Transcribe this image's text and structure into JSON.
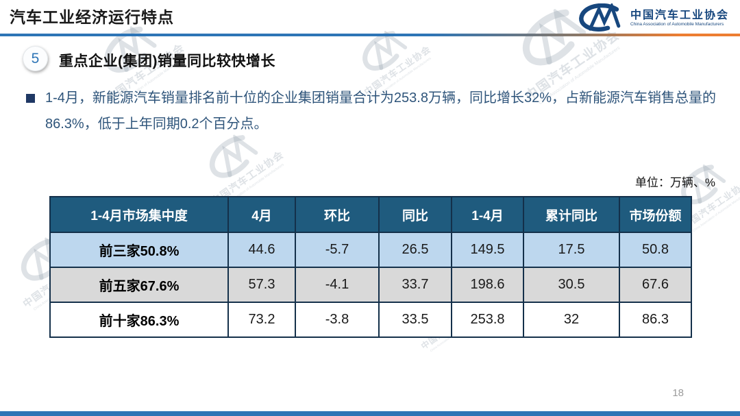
{
  "header": {
    "title": "汽车工业经济运行特点",
    "logo": {
      "glyph": "CM",
      "org_cn": "中国汽车工业协会",
      "org_en": "China Association of Automobile Manufacturers"
    }
  },
  "section": {
    "number": "5",
    "heading": "重点企业(集团)销量同比较快增长"
  },
  "bullet": {
    "text": "1-4月，新能源汽车销量排名前十位的企业集团销量合计为253.8万辆，同比增长32%，占新能源汽车销售总量的86.3%，低于上年同期0.2个百分点。"
  },
  "table": {
    "unit_label": "单位：万辆、%",
    "columns": [
      "1-4月市场集中度",
      "4月",
      "环比",
      "同比",
      "1-4月",
      "累计同比",
      "市场份额"
    ],
    "rows": [
      {
        "label": "前三家50.8%",
        "values": [
          "44.6",
          "-5.7",
          "26.5",
          "149.5",
          "17.5",
          "50.8"
        ]
      },
      {
        "label": "前五家67.6%",
        "values": [
          "57.3",
          "-4.1",
          "33.7",
          "198.6",
          "30.5",
          "67.6"
        ]
      },
      {
        "label": "前十家86.3%",
        "values": [
          "73.2",
          "-3.8",
          "33.5",
          "253.8",
          "32",
          "86.3"
        ]
      }
    ]
  },
  "footer": {
    "page_number": "18"
  },
  "colors": {
    "divider_blue": "#2E75B6",
    "divider_orange": "#ED7D31",
    "table_header_bg": "#1F5B7E",
    "row_light_blue": "#BDD7EE",
    "row_light_gray": "#D9D9D9",
    "table_border": "#14304A",
    "body_text_navy": "#2E547A",
    "logo_navy": "#17477E",
    "bottom_bar_blue": "#2E74B5",
    "section_number_blue": "#2E75B6"
  },
  "chart_data": {
    "type": "table",
    "title": "1-4月市场集中度",
    "unit": "万辆、%",
    "columns": [
      "1-4月市场集中度",
      "4月",
      "环比",
      "同比",
      "1-4月",
      "累计同比",
      "市场份额"
    ],
    "rows": [
      [
        "前三家50.8%",
        44.6,
        -5.7,
        26.5,
        149.5,
        17.5,
        50.8
      ],
      [
        "前五家67.6%",
        57.3,
        -4.1,
        33.7,
        198.6,
        30.5,
        67.6
      ],
      [
        "前十家86.3%",
        73.2,
        -3.8,
        33.5,
        253.8,
        32,
        86.3
      ]
    ]
  }
}
